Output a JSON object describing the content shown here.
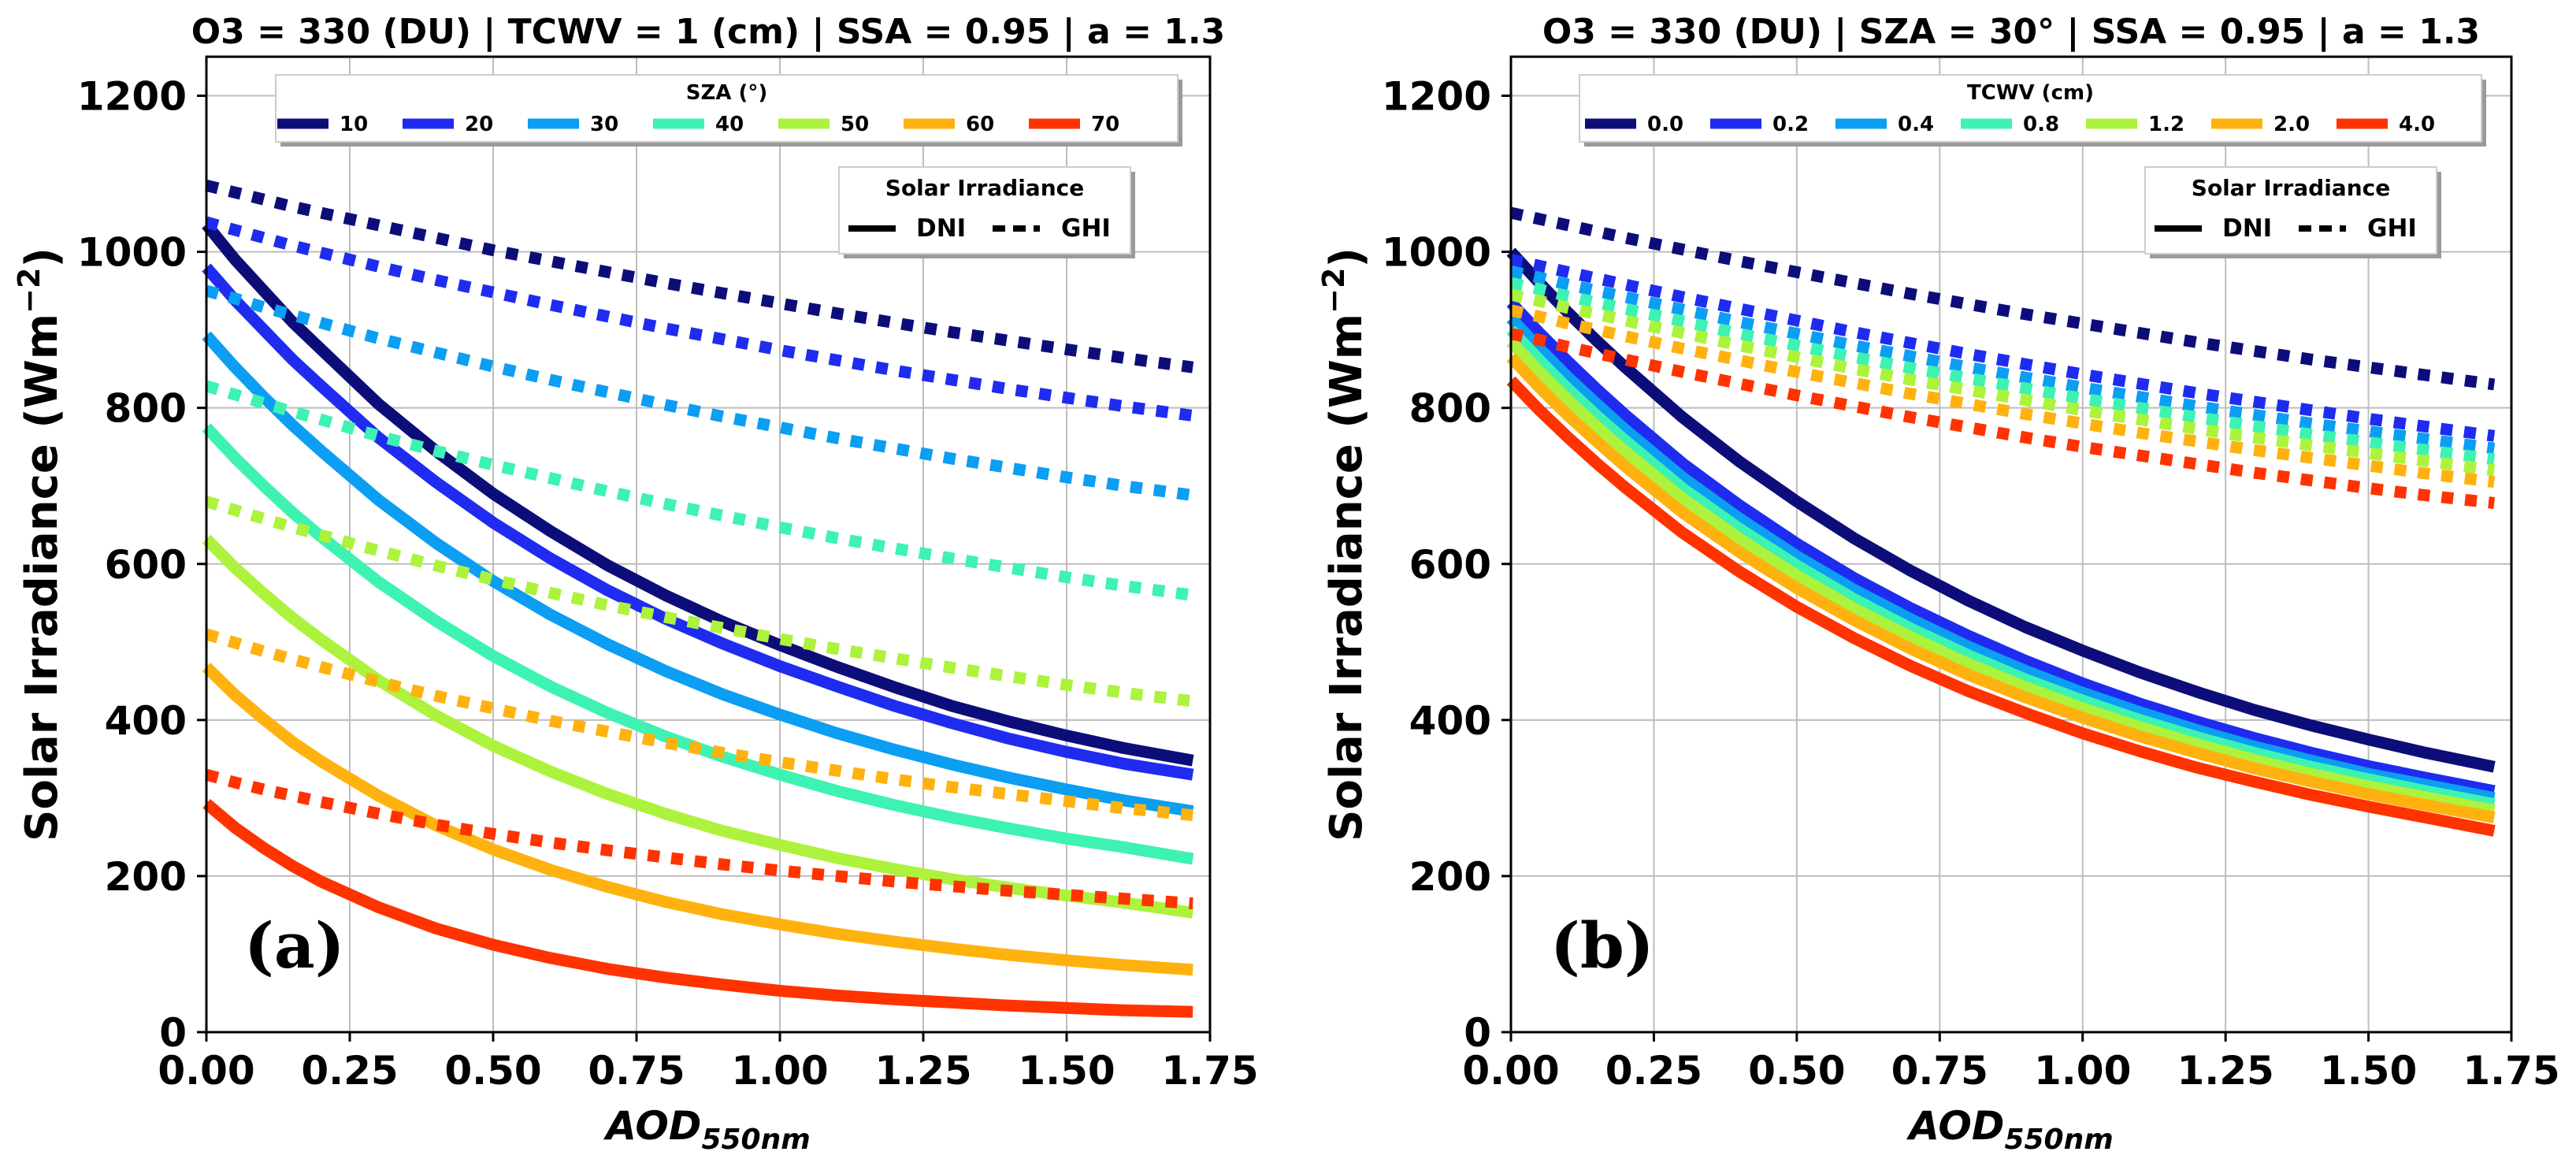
{
  "chart_data": [
    {
      "type": "line",
      "panel_label": "(a)",
      "title": "O3 = 330 (DU) | TCWV = 1 (cm) | SSA = 0.95 | a = 1.3",
      "xlabel": "AOD",
      "xlabel_sub": "550nm",
      "ylabel": "Solar Irradiance (Wm",
      "ylabel_sup": "−2",
      "ylabel_end": ")",
      "xlim": [
        0,
        1.75
      ],
      "ylim": [
        0,
        1250
      ],
      "xticks": [
        0,
        0.25,
        0.5,
        0.75,
        1.0,
        1.25,
        1.5,
        1.75
      ],
      "xtick_labels": [
        "0.00",
        "0.25",
        "0.50",
        "0.75",
        "1.00",
        "1.25",
        "1.50",
        "1.75"
      ],
      "yticks": [
        0,
        200,
        400,
        600,
        800,
        1000,
        1200
      ],
      "ytick_labels": [
        "0",
        "200",
        "400",
        "600",
        "800",
        "1000",
        "1200"
      ],
      "grid": true,
      "legend_title": "SZA (°)",
      "legend2_title": "Solar Irradiance",
      "legend2_entries": [
        "DNI",
        "GHI"
      ],
      "x": [
        0,
        0.05,
        0.1,
        0.15,
        0.2,
        0.3,
        0.4,
        0.5,
        0.6,
        0.7,
        0.8,
        0.9,
        1.0,
        1.1,
        1.2,
        1.3,
        1.4,
        1.5,
        1.6,
        1.72
      ],
      "series": [
        {
          "name": "10",
          "color": "#0d0d7a",
          "dni": [
            1035,
            990,
            950,
            910,
            875,
            805,
            745,
            690,
            642,
            598,
            560,
            526,
            496,
            468,
            442,
            418,
            398,
            380,
            364,
            348
          ],
          "ghi": [
            1085,
            1076,
            1067,
            1058,
            1050,
            1034,
            1018,
            1002,
            988,
            974,
            960,
            947,
            934,
            921,
            909,
            897,
            886,
            875,
            864,
            852
          ]
        },
        {
          "name": "20",
          "color": "#1f2cf0",
          "dni": [
            980,
            938,
            900,
            862,
            828,
            762,
            705,
            653,
            607,
            566,
            530,
            498,
            469,
            443,
            418,
            396,
            376,
            359,
            344,
            330
          ],
          "ghi": [
            1038,
            1028,
            1018,
            1008,
            999,
            981,
            964,
            948,
            932,
            917,
            902,
            888,
            874,
            861,
            848,
            836,
            824,
            813,
            802,
            790
          ]
        },
        {
          "name": "30",
          "color": "#0b9ef2",
          "dni": [
            893,
            852,
            814,
            778,
            745,
            682,
            627,
            578,
            535,
            497,
            463,
            433,
            407,
            383,
            362,
            343,
            326,
            311,
            297,
            283
          ],
          "ghi": [
            950,
            940,
            929,
            919,
            909,
            889,
            871,
            853,
            836,
            820,
            804,
            789,
            775,
            761,
            748,
            735,
            723,
            711,
            700,
            688
          ]
        },
        {
          "name": "40",
          "color": "#3ef2b2",
          "dni": [
            775,
            736,
            700,
            666,
            635,
            577,
            527,
            482,
            443,
            409,
            379,
            353,
            330,
            309,
            291,
            275,
            261,
            248,
            237,
            222
          ],
          "ghi": [
            828,
            817,
            806,
            795,
            785,
            764,
            745,
            727,
            710,
            693,
            677,
            662,
            647,
            633,
            620,
            607,
            595,
            583,
            572,
            560
          ]
        },
        {
          "name": "50",
          "color": "#adf23d",
          "dni": [
            632,
            595,
            562,
            531,
            503,
            451,
            406,
            367,
            334,
            305,
            280,
            258,
            240,
            223,
            209,
            196,
            185,
            175,
            166,
            153
          ],
          "ghi": [
            680,
            669,
            658,
            647,
            637,
            617,
            598,
            580,
            563,
            547,
            532,
            518,
            504,
            491,
            479,
            467,
            456,
            445,
            435,
            424
          ]
        },
        {
          "name": "60",
          "color": "#ffb20f",
          "dni": [
            468,
            432,
            401,
            372,
            347,
            303,
            265,
            234,
            208,
            186,
            167,
            151,
            138,
            126,
            116,
            107,
            99,
            92,
            86,
            80
          ],
          "ghi": [
            510,
            499,
            488,
            478,
            468,
            449,
            431,
            415,
            399,
            385,
            371,
            358,
            346,
            335,
            324,
            314,
            305,
            296,
            287,
            278
          ]
        },
        {
          "name": "70",
          "color": "#ff3300",
          "dni": [
            293,
            262,
            236,
            213,
            193,
            160,
            133,
            112,
            95,
            81,
            70,
            61,
            53,
            47,
            42,
            38,
            34,
            31,
            28,
            26
          ],
          "ghi": [
            330,
            320,
            311,
            303,
            295,
            280,
            266,
            254,
            243,
            233,
            224,
            215,
            207,
            200,
            193,
            187,
            181,
            176,
            171,
            165
          ]
        }
      ]
    },
    {
      "type": "line",
      "panel_label": "(b)",
      "title": "O3 = 330 (DU) | SZA = 30° | SSA = 0.95 | a = 1.3",
      "xlabel": "AOD",
      "xlabel_sub": "550nm",
      "ylabel": "Solar Irradiance (Wm",
      "ylabel_sup": "−2",
      "ylabel_end": ")",
      "xlim": [
        0,
        1.75
      ],
      "ylim": [
        0,
        1250
      ],
      "xticks": [
        0,
        0.25,
        0.5,
        0.75,
        1.0,
        1.25,
        1.5,
        1.75
      ],
      "xtick_labels": [
        "0.00",
        "0.25",
        "0.50",
        "0.75",
        "1.00",
        "1.25",
        "1.50",
        "1.75"
      ],
      "yticks": [
        0,
        200,
        400,
        600,
        800,
        1000,
        1200
      ],
      "ytick_labels": [
        "0",
        "200",
        "400",
        "600",
        "800",
        "1000",
        "1200"
      ],
      "grid": true,
      "legend_title": "TCWV (cm)",
      "legend2_title": "Solar Irradiance",
      "legend2_entries": [
        "DNI",
        "GHI"
      ],
      "x": [
        0,
        0.05,
        0.1,
        0.15,
        0.2,
        0.3,
        0.4,
        0.5,
        0.6,
        0.7,
        0.8,
        0.9,
        1.0,
        1.1,
        1.2,
        1.3,
        1.4,
        1.5,
        1.6,
        1.72
      ],
      "series": [
        {
          "name": "0.0",
          "color": "#0d0d7a",
          "dni": [
            1000,
            960,
            922,
            886,
            852,
            788,
            731,
            680,
            633,
            591,
            553,
            519,
            489,
            461,
            436,
            413,
            393,
            375,
            358,
            340
          ],
          "ghi": [
            1050,
            1042,
            1034,
            1026,
            1018,
            1003,
            988,
            974,
            960,
            946,
            933,
            920,
            908,
            896,
            884,
            873,
            862,
            852,
            842,
            830
          ]
        },
        {
          "name": "0.2",
          "color": "#1f2cf0",
          "dni": [
            935,
            896,
            859,
            824,
            791,
            729,
            675,
            626,
            582,
            543,
            508,
            476,
            447,
            421,
            398,
            377,
            358,
            341,
            326,
            309
          ],
          "ghi": [
            990,
            982,
            974,
            966,
            958,
            942,
            927,
            912,
            897,
            883,
            869,
            856,
            843,
            831,
            819,
            808,
            797,
            786,
            776,
            764
          ]
        },
        {
          "name": "0.4",
          "color": "#0b9ef2",
          "dni": [
            915,
            876,
            839,
            805,
            772,
            711,
            658,
            610,
            567,
            529,
            494,
            463,
            435,
            410,
            387,
            366,
            348,
            331,
            317,
            300
          ],
          "ghi": [
            975,
            967,
            958,
            950,
            942,
            926,
            910,
            895,
            880,
            866,
            852,
            839,
            826,
            814,
            802,
            791,
            780,
            770,
            760,
            748
          ]
        },
        {
          "name": "0.8",
          "color": "#3ef2b2",
          "dni": [
            900,
            861,
            824,
            790,
            758,
            697,
            645,
            598,
            555,
            517,
            483,
            452,
            425,
            400,
            378,
            358,
            340,
            324,
            309,
            292
          ],
          "ghi": [
            960,
            952,
            943,
            935,
            927,
            911,
            895,
            880,
            865,
            851,
            838,
            825,
            812,
            800,
            788,
            777,
            766,
            756,
            746,
            734
          ]
        },
        {
          "name": "1.2",
          "color": "#adf23d",
          "dni": [
            885,
            846,
            810,
            776,
            744,
            684,
            632,
            585,
            543,
            506,
            472,
            442,
            415,
            391,
            369,
            349,
            331,
            315,
            301,
            284
          ],
          "ghi": [
            945,
            937,
            928,
            920,
            912,
            896,
            880,
            865,
            850,
            836,
            823,
            810,
            797,
            785,
            773,
            762,
            752,
            742,
            732,
            720
          ]
        },
        {
          "name": "2.0",
          "color": "#ffb20f",
          "dni": [
            865,
            826,
            790,
            757,
            725,
            666,
            615,
            569,
            528,
            491,
            458,
            429,
            403,
            379,
            358,
            338,
            321,
            305,
            291,
            275
          ],
          "ghi": [
            925,
            917,
            908,
            900,
            892,
            876,
            861,
            846,
            832,
            818,
            805,
            792,
            780,
            768,
            757,
            746,
            736,
            726,
            716,
            705
          ]
        },
        {
          "name": "4.0",
          "color": "#ff3300",
          "dni": [
            835,
            797,
            762,
            729,
            698,
            640,
            590,
            545,
            505,
            469,
            437,
            409,
            383,
            360,
            339,
            321,
            304,
            289,
            275,
            258
          ],
          "ghi": [
            895,
            887,
            878,
            870,
            862,
            846,
            831,
            816,
            802,
            788,
            775,
            762,
            750,
            739,
            728,
            717,
            707,
            697,
            688,
            678
          ]
        }
      ]
    }
  ]
}
